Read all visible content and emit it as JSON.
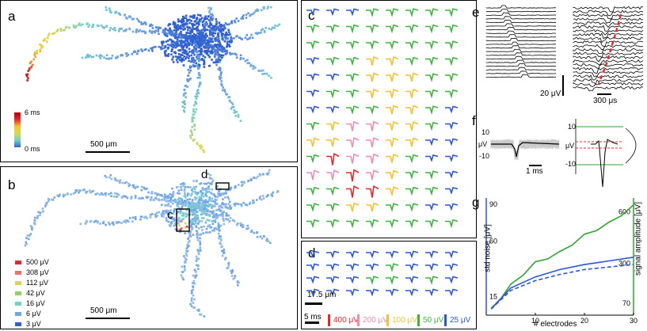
{
  "panels": {
    "a": {
      "label": "a",
      "scalebar": "500 μm",
      "colorbar_top": "6 ms",
      "colorbar_bottom": "0 ms"
    },
    "b": {
      "label": "b",
      "scalebar": "500 μm",
      "inset_c": "c",
      "inset_d": "d",
      "legend": [
        {
          "label": "500 μV",
          "color": "#e8262a"
        },
        {
          "label": "308 μV",
          "color": "#ef6f6c"
        },
        {
          "label": "112 μV",
          "color": "#d8d94a"
        },
        {
          "label": "42 μV",
          "color": "#8fd35a"
        },
        {
          "label": "16 μV",
          "color": "#6fd4c8"
        },
        {
          "label": "6 μV",
          "color": "#6fa6e6"
        },
        {
          "label": "3 μV",
          "color": "#2f5fd0"
        }
      ]
    },
    "c": {
      "label": "c"
    },
    "d": {
      "label": "d",
      "scale_um": "17.5 μm",
      "scale_ms": "5 ms",
      "legend": [
        {
          "label": "400 μV",
          "color": "#e8262a"
        },
        {
          "label": "200 μV",
          "color": "#f08cb0"
        },
        {
          "label": "100 μV",
          "color": "#f5c12c"
        },
        {
          "label": "50 μV",
          "color": "#3cb43c"
        },
        {
          "label": "25 μV",
          "color": "#2a55d8"
        }
      ]
    },
    "e": {
      "label": "e",
      "scale_v": "20 μV",
      "scale_t": "300 μs"
    },
    "f": {
      "label": "f",
      "y_top": "10",
      "y_unit": "μV",
      "y_bot": "-10",
      "scale_t": "1 ms",
      "y_top2": "10",
      "y_unit2": "μV",
      "y_bot2": "-10"
    },
    "g": {
      "label": "g",
      "ylabel_left": "std noise [μV]",
      "ylabel_right": "signal amplitude [μV]",
      "xlabel": "# electrodes"
    }
  },
  "chart_data": {
    "type": "line",
    "x": [
      1,
      5,
      10,
      15,
      20,
      25,
      30
    ],
    "xlim": [
      0,
      30
    ],
    "xticks": [
      10,
      20,
      30
    ],
    "left_axis": {
      "label": "std noise [μV]",
      "ticks": [
        15,
        60,
        90
      ]
    },
    "right_axis": {
      "label": "signal amplitude [μV]",
      "ticks": [
        70,
        300,
        600
      ]
    },
    "series": [
      {
        "axis": "right",
        "color": "#2ea52e",
        "style": "solid",
        "values": [
          40,
          180,
          310,
          370,
          470,
          540,
          640
        ]
      },
      {
        "axis": "left",
        "color": "#2a55d8",
        "style": "solid",
        "values": [
          5,
          22,
          31,
          37,
          41,
          44,
          47
        ]
      },
      {
        "axis": "left",
        "color": "#2a55d8",
        "style": "dashed",
        "values": [
          5,
          20,
          28,
          33,
          37,
          39,
          41
        ]
      }
    ]
  },
  "grid_c": {
    "colors": [
      [
        "#2a55d8",
        "#2a55d8",
        "#2a55d8",
        "#3cb43c",
        "#3cb43c",
        "#3cb43c",
        "#3cb43c",
        "#3cb43c"
      ],
      [
        "#3cb43c",
        "#3cb43c",
        "#3cb43c",
        "#3cb43c",
        "#3cb43c",
        "#3cb43c",
        "#3cb43c",
        "#3cb43c"
      ],
      [
        "#3cb43c",
        "#3cb43c",
        "#3cb43c",
        "#3cb43c",
        "#3cb43c",
        "#3cb43c",
        "#3cb43c",
        "#3cb43c"
      ],
      [
        "#2a55d8",
        "#3cb43c",
        "#3cb43c",
        "#f5c12c",
        "#f5c12c",
        "#3cb43c",
        "#3cb43c",
        "#3cb43c"
      ],
      [
        "#2a55d8",
        "#2a55d8",
        "#3cb43c",
        "#f5c12c",
        "#f5c12c",
        "#f5c12c",
        "#3cb43c",
        "#3cb43c"
      ],
      [
        "#2a55d8",
        "#3cb43c",
        "#3cb43c",
        "#f5c12c",
        "#f5c12c",
        "#f5c12c",
        "#3cb43c",
        "#3cb43c"
      ],
      [
        "#2a55d8",
        "#2a55d8",
        "#3cb43c",
        "#3cb43c",
        "#f5c12c",
        "#f5c12c",
        "#3cb43c",
        "#2a55d8"
      ],
      [
        "#3cb43c",
        "#f5c12c",
        "#f08cb0",
        "#f08cb0",
        "#f5c12c",
        "#f5c12c",
        "#3cb43c",
        "#2a55d8"
      ],
      [
        "#f5c12c",
        "#f5c12c",
        "#f08cb0",
        "#f08cb0",
        "#f5c12c",
        "#f5c12c",
        "#2a55d8",
        "#2a55d8"
      ],
      [
        "#3cb43c",
        "#e8262a",
        "#f08cb0",
        "#f08cb0",
        "#f5c12c",
        "#3cb43c",
        "#2a55d8",
        "#2a55d8"
      ],
      [
        "#f08cb0",
        "#f08cb0",
        "#e8262a",
        "#f08cb0",
        "#f5c12c",
        "#3cb43c",
        "#3cb43c",
        "#2a55d8"
      ],
      [
        "#3cb43c",
        "#3cb43c",
        "#e8262a",
        "#e8262a",
        "#f5c12c",
        "#3cb43c",
        "#3cb43c",
        "#2a55d8"
      ],
      [
        "#3cb43c",
        "#3cb43c",
        "#f5c12c",
        "#f5c12c",
        "#3cb43c",
        "#3cb43c",
        "#2a55d8",
        "#2a55d8"
      ],
      [
        "#3cb43c",
        "#3cb43c",
        "#3cb43c",
        "#3cb43c",
        "#3cb43c",
        "#3cb43c",
        "#3cb43c",
        "#3cb43c"
      ]
    ]
  },
  "grid_d": {
    "colors": [
      [
        "#2a55d8",
        "#2a55d8",
        "#2a55d8",
        "#2a55d8",
        "#2a55d8",
        "#2a55d8",
        "#2a55d8",
        "#2a55d8"
      ],
      [
        "#2a55d8",
        "#2a55d8",
        "#2a55d8",
        "#2a55d8",
        "#3cb43c",
        "#2a55d8",
        "#2a55d8",
        "#2a55d8"
      ],
      [
        "#2a55d8",
        "#2a55d8",
        "#2a55d8",
        "#3cb43c",
        "#3cb43c",
        "#2a55d8",
        "#3cb43c",
        "#2a55d8"
      ],
      [
        "#2a55d8",
        "#2a55d8",
        "#2a55d8",
        "#2a55d8",
        "#2a55d8",
        "#2a55d8",
        "#2a55d8",
        "#2a55d8"
      ]
    ]
  }
}
